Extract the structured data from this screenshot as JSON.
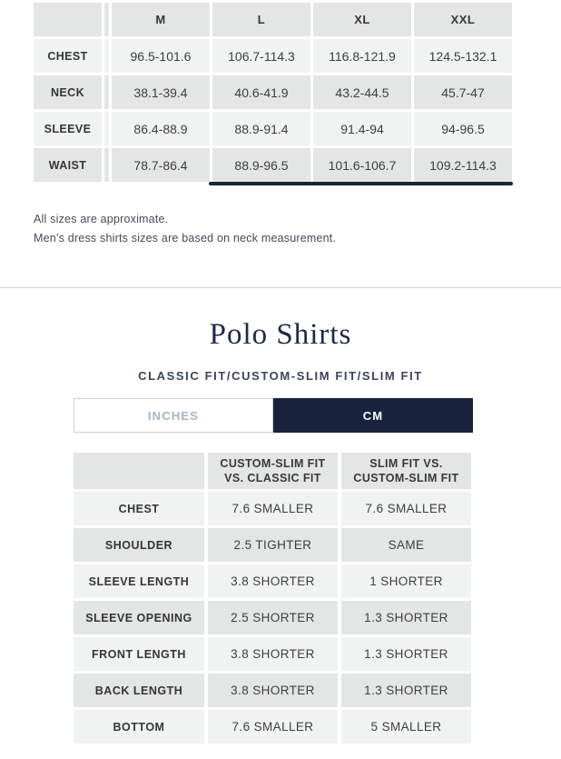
{
  "dress_shirt_table": {
    "columns": [
      "M",
      "L",
      "XL",
      "XXL"
    ],
    "rows": [
      {
        "label": "CHEST",
        "values": [
          "96.5-101.6",
          "106.7-114.3",
          "116.8-121.9",
          "124.5-132.1"
        ]
      },
      {
        "label": "NECK",
        "values": [
          "38.1-39.4",
          "40.6-41.9",
          "43.2-44.5",
          "45.7-47"
        ]
      },
      {
        "label": "SLEEVE",
        "values": [
          "86.4-88.9",
          "88.9-91.4",
          "91.4-94",
          "94-96.5"
        ]
      },
      {
        "label": "WAIST",
        "values": [
          "78.7-86.4",
          "88.9-96.5",
          "101.6-106.7",
          "109.2-114.3"
        ]
      }
    ]
  },
  "notes": [
    "All sizes are approximate.",
    "Men’s dress shirts sizes are based on neck measurement."
  ],
  "polo_section": {
    "title": "Polo Shirts",
    "subtitle": "CLASSIC FIT/CUSTOM-SLIM FIT/SLIM FIT",
    "unit_toggle": {
      "options": [
        {
          "label": "INCHES",
          "selected": false
        },
        {
          "label": "CM",
          "selected": true
        }
      ]
    },
    "comparison_table": {
      "columns": [
        "CUSTOM-SLIM FIT VS. CLASSIC FIT",
        "SLIM FIT VS. CUSTOM-SLIM FIT"
      ],
      "rows": [
        {
          "label": "CHEST",
          "values": [
            "7.6 SMALLER",
            "7.6 SMALLER"
          ]
        },
        {
          "label": "SHOULDER",
          "values": [
            "2.5 TIGHTER",
            "SAME"
          ]
        },
        {
          "label": "SLEEVE LENGTH",
          "values": [
            "3.8 SHORTER",
            "1 SHORTER"
          ]
        },
        {
          "label": "SLEEVE OPENING",
          "values": [
            "2.5 SHORTER",
            "1.3 SHORTER"
          ]
        },
        {
          "label": "FRONT LENGTH",
          "values": [
            "3.8 SHORTER",
            "1.3 SHORTER"
          ]
        },
        {
          "label": "BACK LENGTH",
          "values": [
            "3.8 SHORTER",
            "1.3 SHORTER"
          ]
        },
        {
          "label": "BOTTOM",
          "values": [
            "7.6 SMALLER",
            "5 SMALLER"
          ]
        }
      ]
    }
  },
  "colors": {
    "accent_navy": "#17233c",
    "scrollbar": "#1c2433",
    "cell_dark": "#e4e5e5",
    "cell_light": "#f1f2f2",
    "inactive_tab_text": "#a6b3c3",
    "title_navy": "#1e2a45"
  }
}
